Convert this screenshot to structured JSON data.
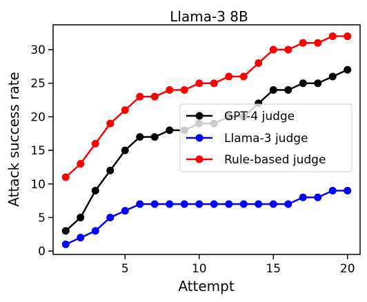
{
  "chart_data": {
    "type": "line",
    "title": "Llama-3 8B",
    "xlabel": "Attempt",
    "ylabel": "Attack success rate",
    "xlim": [
      0.15,
      20.85
    ],
    "ylim": [
      -0.5,
      33.7
    ],
    "xticks": [
      5,
      10,
      15,
      20
    ],
    "yticks": [
      0,
      5,
      10,
      15,
      20,
      25,
      30
    ],
    "grid": false,
    "legend_position": "center-right",
    "x": [
      1,
      2,
      3,
      4,
      5,
      6,
      7,
      8,
      9,
      10,
      11,
      12,
      13,
      14,
      15,
      16,
      17,
      18,
      19,
      20
    ],
    "series": [
      {
        "name": "GPT-4 judge",
        "color": "#000000",
        "values": [
          3,
          5,
          9,
          12,
          15,
          17,
          17,
          18,
          18,
          19,
          19,
          20,
          20,
          22,
          24,
          24,
          25,
          25,
          26,
          27
        ]
      },
      {
        "name": "Llama-3 judge",
        "color": "#0000ff",
        "values": [
          1,
          2,
          3,
          5,
          6,
          7,
          7,
          7,
          7,
          7,
          7,
          7,
          7,
          7,
          7,
          7,
          8,
          8,
          9,
          9
        ]
      },
      {
        "name": "Rule-based judge",
        "color": "#ff0000",
        "values": [
          11,
          13,
          16,
          19,
          21,
          23,
          23,
          24,
          24,
          25,
          25,
          26,
          26,
          28,
          30,
          30,
          31,
          31,
          32,
          32
        ]
      }
    ]
  }
}
